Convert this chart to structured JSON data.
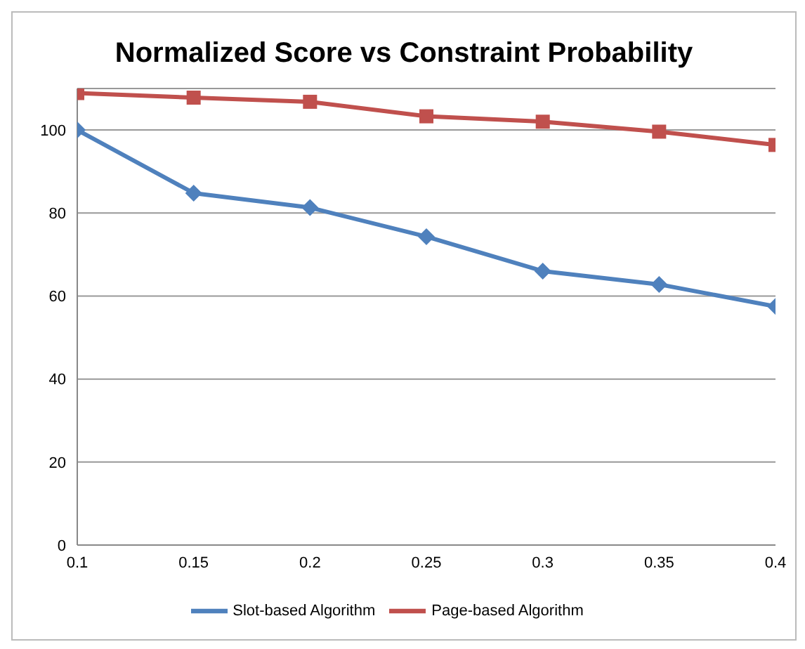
{
  "chart_data": {
    "type": "line",
    "title": "Normalized Score vs Constraint Probability",
    "x": [
      0.1,
      0.15,
      0.2,
      0.25,
      0.3,
      0.35,
      0.4
    ],
    "series": [
      {
        "name": "Slot-based Algorithm",
        "color": "#4f81bd",
        "marker": "diamond",
        "values": [
          100,
          84.8,
          81.3,
          74.3,
          66,
          62.8,
          57.5
        ]
      },
      {
        "name": "Page-based Algorithm",
        "color": "#c0504d",
        "marker": "square",
        "values": [
          108.9,
          107.8,
          106.8,
          103.3,
          102,
          99.6,
          96.4
        ]
      }
    ],
    "xlim": [
      0.1,
      0.4
    ],
    "xticks": [
      0.1,
      0.15,
      0.2,
      0.25,
      0.3,
      0.35,
      0.4
    ],
    "ylim": [
      0,
      110
    ],
    "yticks": [
      0,
      20,
      40,
      60,
      80,
      100
    ],
    "grid": "y",
    "legend": "bottom"
  }
}
